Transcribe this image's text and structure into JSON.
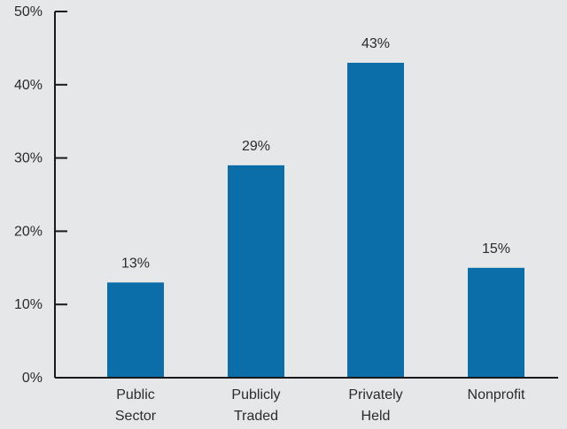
{
  "chart_data": {
    "type": "bar",
    "title": "",
    "xlabel": "",
    "ylabel": "",
    "ylim": [
      0,
      50
    ],
    "yticks": [
      {
        "value": 0,
        "label": "0%"
      },
      {
        "value": 10,
        "label": "10%"
      },
      {
        "value": 20,
        "label": "20%"
      },
      {
        "value": 30,
        "label": "30%"
      },
      {
        "value": 40,
        "label": "40%"
      },
      {
        "value": 50,
        "label": "50%"
      }
    ],
    "categories": [
      {
        "lines": [
          "Public",
          "Sector"
        ]
      },
      {
        "lines": [
          "Publicly",
          "Traded"
        ]
      },
      {
        "lines": [
          "Privately",
          "Held"
        ]
      },
      {
        "lines": [
          "Nonprofit"
        ]
      }
    ],
    "values": [
      13,
      29,
      43,
      15
    ],
    "data_labels": [
      "13%",
      "29%",
      "43%",
      "15%"
    ],
    "grid": false,
    "legend": "none",
    "colors": {
      "bar": "#0b6ea9",
      "axis": "#1a1a1a",
      "background": "#e6e7e8",
      "text": "#2b2b2b"
    }
  }
}
